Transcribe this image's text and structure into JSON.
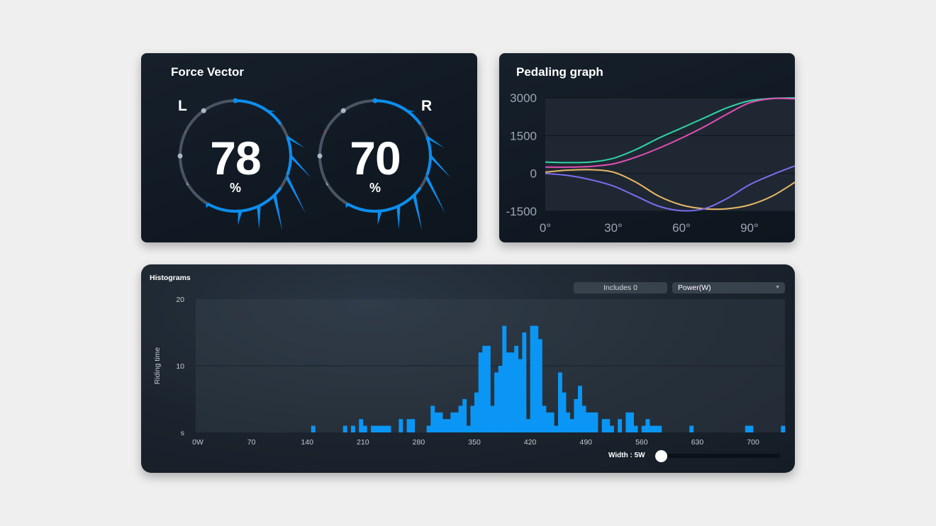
{
  "force_vector": {
    "title": "Force Vector",
    "left": {
      "side": "L",
      "value": "78",
      "unit": "%"
    },
    "right": {
      "side": "R",
      "value": "70",
      "unit": "%"
    }
  },
  "pedaling": {
    "title": "Pedaling graph"
  },
  "histogram": {
    "title": "Histograms",
    "includes_label": "Includes 0",
    "metric_select": "Power(W)",
    "y_unit": "s",
    "width_label": "Width : 5W",
    "width_slider": 0.05
  },
  "chart_data": [
    {
      "type": "line",
      "x": [
        0,
        10,
        20,
        30,
        40,
        50,
        60,
        70,
        80,
        90,
        100,
        110
      ],
      "xticks": [
        "0°",
        "30°",
        "60°",
        "90°"
      ],
      "xtick_values": [
        0,
        30,
        60,
        90
      ],
      "yticks": [
        "3000",
        "1500",
        "0",
        "-1500"
      ],
      "ytick_values": [
        3000,
        1500,
        0,
        -1500
      ],
      "ylim": [
        -1500,
        3000
      ],
      "xlim": [
        0,
        110
      ],
      "grid": true,
      "series": [
        {
          "color": "#2fd3a8",
          "values": [
            450,
            430,
            450,
            600,
            950,
            1400,
            1800,
            2200,
            2600,
            2880,
            2980,
            3000
          ]
        },
        {
          "color": "#e14fb5",
          "values": [
            250,
            250,
            280,
            380,
            650,
            1000,
            1400,
            1850,
            2350,
            2800,
            2970,
            2960
          ]
        },
        {
          "color": "#e8b867",
          "values": [
            50,
            130,
            150,
            50,
            -350,
            -900,
            -1250,
            -1400,
            -1400,
            -1250,
            -900,
            -350
          ]
        },
        {
          "color": "#7b6cf0",
          "values": [
            0,
            -80,
            -250,
            -500,
            -900,
            -1300,
            -1480,
            -1400,
            -1000,
            -450,
            -50,
            300
          ]
        }
      ]
    },
    {
      "type": "bar",
      "xlim": [
        0,
        740
      ],
      "ylim": [
        0,
        20
      ],
      "xticks": [
        "0W",
        "70",
        "140",
        "210",
        "280",
        "350",
        "420",
        "490",
        "560",
        "630",
        "700"
      ],
      "xtick_values": [
        0,
        70,
        140,
        210,
        280,
        350,
        420,
        490,
        560,
        630,
        700
      ],
      "yticks": [
        "20",
        "10"
      ],
      "ytick_values": [
        20,
        10
      ],
      "ylabel": "Riding time",
      "bin_width": 5,
      "color": "#0b96f5",
      "grid": true,
      "x": [
        145,
        185,
        195,
        205,
        210,
        220,
        225,
        230,
        235,
        240,
        255,
        265,
        270,
        290,
        295,
        300,
        305,
        310,
        315,
        320,
        325,
        330,
        335,
        340,
        345,
        350,
        355,
        360,
        365,
        370,
        375,
        380,
        385,
        390,
        395,
        400,
        405,
        410,
        415,
        420,
        425,
        430,
        435,
        440,
        445,
        450,
        455,
        460,
        465,
        470,
        475,
        480,
        485,
        490,
        495,
        500,
        510,
        515,
        520,
        530,
        540,
        545,
        550,
        560,
        565,
        570,
        575,
        580,
        620,
        690,
        695,
        735
      ],
      "values": [
        1,
        1,
        1,
        2,
        1,
        1,
        1,
        1,
        1,
        1,
        2,
        2,
        2,
        1,
        4,
        3,
        3,
        2,
        2,
        3,
        3,
        4,
        5,
        1,
        4,
        6,
        12,
        13,
        13,
        4,
        9,
        10,
        16,
        12,
        12,
        13,
        11,
        15,
        2,
        16,
        16,
        14,
        4,
        3,
        3,
        1,
        9,
        6,
        3,
        2,
        5,
        7,
        4,
        3,
        3,
        3,
        2,
        2,
        1,
        2,
        3,
        3,
        1,
        1,
        2,
        1,
        1,
        1,
        1,
        1,
        1,
        1
      ]
    }
  ]
}
